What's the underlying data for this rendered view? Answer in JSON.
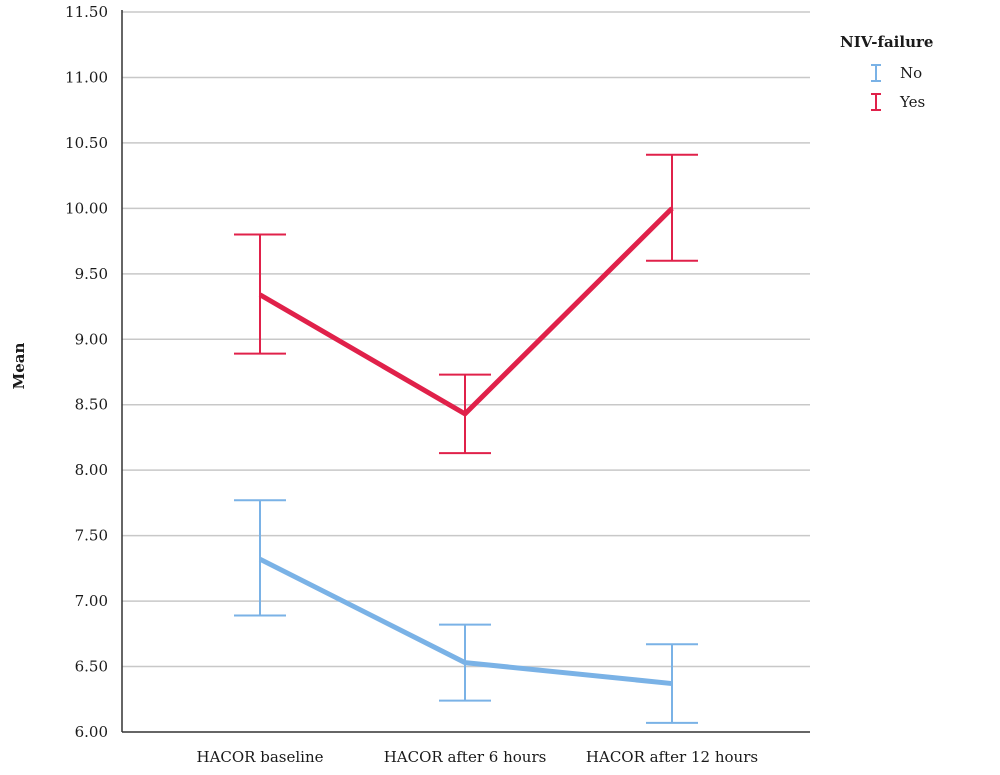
{
  "chart_data": {
    "type": "line",
    "title": "",
    "xlabel": "",
    "ylabel": "Mean",
    "categories": [
      "HACOR baseline",
      "HACOR after 6 hours",
      "HACOR after 12 hours"
    ],
    "ylim": [
      6.0,
      11.5
    ],
    "yticks": [
      "6.00",
      "6.50",
      "7.00",
      "7.50",
      "8.00",
      "8.50",
      "9.00",
      "9.50",
      "10.00",
      "10.50",
      "11.00",
      "11.50"
    ],
    "grid": true,
    "legend": {
      "title": "NIV-failure",
      "position": "top-right"
    },
    "series": [
      {
        "name": "No",
        "color": "#7ab2e6",
        "values": [
          7.32,
          6.53,
          6.37
        ],
        "err_low": [
          6.89,
          6.24,
          6.07
        ],
        "err_high": [
          7.77,
          6.82,
          6.67
        ]
      },
      {
        "name": "Yes",
        "color": "#e0214a",
        "values": [
          9.34,
          8.43,
          10.0
        ],
        "err_low": [
          8.89,
          8.13,
          9.6
        ],
        "err_high": [
          9.8,
          8.73,
          10.41
        ]
      }
    ]
  }
}
